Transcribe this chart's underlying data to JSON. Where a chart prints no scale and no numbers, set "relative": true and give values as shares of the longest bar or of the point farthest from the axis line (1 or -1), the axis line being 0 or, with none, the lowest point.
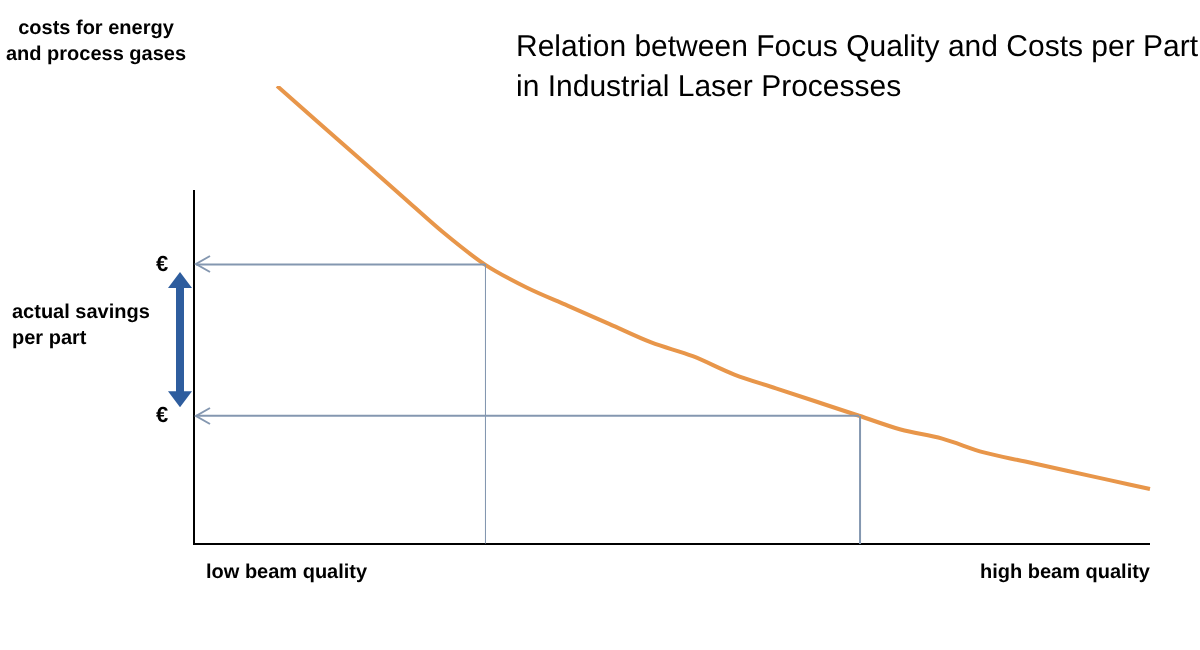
{
  "chart_data": {
    "type": "line",
    "relative": true,
    "title": "Relation between Focus Quality and Costs per Part in Industrial Laser Processes",
    "ylabel": "costs for energy and process gases",
    "categories": [
      null,
      null,
      null,
      null,
      null,
      null,
      null,
      null,
      null,
      null,
      null,
      null,
      null,
      null,
      null,
      null,
      null,
      null,
      null,
      null,
      null,
      null,
      null,
      null
    ],
    "series": [
      {
        "color": "#e8964a",
        "values": [
          null,
          null,
          1,
          0.92,
          0.84,
          0.76,
          0.68,
          0.61,
          0.56,
          0.52,
          0.48,
          0.44,
          0.41,
          0.37,
          0.34,
          0.31,
          0.28,
          0.25,
          0.23,
          0.2,
          0.18,
          0.16,
          0.14,
          0.12
        ]
      }
    ],
    "annotations": [
      "actual savings per part",
      "low beam quality",
      "high beam quality"
    ],
    "ref_lines": [
      {
        "axis": "y",
        "value": 0.61,
        "label": "€",
        "color": "#8497b0"
      },
      {
        "axis": "y",
        "value": 0.28,
        "label": "€",
        "color": "#8497b0"
      }
    ],
    "grid": false,
    "legend": false,
    "marker": "none",
    "line_style": "solid"
  }
}
